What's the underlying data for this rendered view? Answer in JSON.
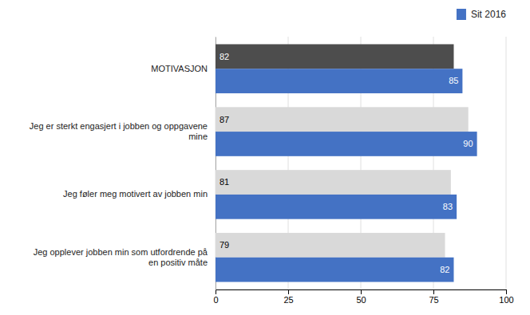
{
  "chart_data": {
    "type": "bar",
    "orientation": "horizontal",
    "categories": [
      "Jeg opplever jobben min som utfordrende på\nen positiv måte",
      "Jeg føler meg motivert av jobben min",
      "Jeg er sterkt engasjert i jobben og oppgavene\nmine",
      "MOTIVASJON"
    ],
    "series": [
      {
        "colors": [
          "#d9d9d9",
          "#d9d9d9",
          "#d9d9d9",
          "#4d4d4d"
        ],
        "values": [
          79,
          81,
          87,
          82
        ]
      },
      {
        "name": "Sit 2016",
        "color": "#4472c4",
        "values": [
          82,
          83,
          90,
          85
        ]
      }
    ],
    "xlim": [
      0,
      100
    ],
    "xticks": [
      0,
      25,
      50,
      75,
      100
    ],
    "grid": true,
    "legend": "top-right",
    "data_labels": true
  }
}
